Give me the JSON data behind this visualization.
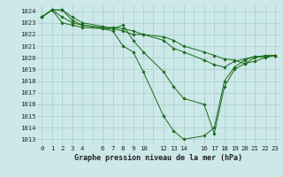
{
  "background_color": "#cce8e8",
  "grid_color": "#aacccc",
  "line_color": "#1a6b1a",
  "marker_color": "#1a6b1a",
  "xlabel": "Graphe pression niveau de la mer (hPa)",
  "ylabel_ticks": [
    1013,
    1014,
    1015,
    1016,
    1017,
    1018,
    1019,
    1020,
    1021,
    1022,
    1023,
    1024
  ],
  "ylim": [
    1012.5,
    1024.5
  ],
  "xlim": [
    -0.5,
    23.5
  ],
  "series": [
    {
      "x": [
        0,
        1,
        2,
        3,
        4,
        6,
        7,
        8,
        9,
        10,
        12,
        13,
        14,
        16,
        17,
        18,
        19,
        20,
        21,
        22,
        23
      ],
      "y": [
        1023.5,
        1024.1,
        1023.5,
        1023.0,
        1022.8,
        1022.5,
        1022.3,
        1021.0,
        1020.5,
        1018.8,
        1015.0,
        1013.7,
        1013.0,
        1013.3,
        1014.0,
        1018.0,
        1019.2,
        1019.8,
        1020.1,
        1020.1,
        1020.2
      ]
    },
    {
      "x": [
        0,
        1,
        2,
        3,
        4,
        6,
        7,
        8,
        9,
        10,
        12,
        13,
        14,
        16,
        17,
        18,
        19,
        20,
        21,
        22,
        23
      ],
      "y": [
        1023.5,
        1024.1,
        1023.0,
        1022.8,
        1022.6,
        1022.5,
        1022.5,
        1022.8,
        1021.5,
        1020.5,
        1018.8,
        1017.5,
        1016.5,
        1016.0,
        1013.5,
        1017.5,
        1019.0,
        1019.5,
        1020.0,
        1020.2,
        1020.2
      ]
    },
    {
      "x": [
        0,
        1,
        2,
        3,
        4,
        6,
        7,
        8,
        9,
        10,
        12,
        13,
        14,
        16,
        17,
        18,
        19,
        20,
        21,
        22,
        23
      ],
      "y": [
        1023.5,
        1024.1,
        1024.1,
        1023.2,
        1022.8,
        1022.6,
        1022.6,
        1022.5,
        1022.3,
        1022.0,
        1021.5,
        1020.8,
        1020.5,
        1019.8,
        1019.4,
        1019.2,
        1019.7,
        1019.9,
        1020.1,
        1020.1,
        1020.2
      ]
    },
    {
      "x": [
        0,
        1,
        2,
        3,
        4,
        6,
        7,
        8,
        9,
        10,
        12,
        13,
        14,
        16,
        17,
        18,
        19,
        20,
        21,
        22,
        23
      ],
      "y": [
        1023.5,
        1024.1,
        1024.1,
        1023.5,
        1023.0,
        1022.7,
        1022.5,
        1022.3,
        1022.0,
        1022.0,
        1021.8,
        1021.5,
        1021.0,
        1020.5,
        1020.2,
        1019.9,
        1019.8,
        1019.5,
        1019.7,
        1020.0,
        1020.2
      ]
    }
  ],
  "skip_xticks": [
    5,
    11,
    15
  ],
  "xlabel_fontsize": 6.0,
  "tick_fontsize": 5.2
}
